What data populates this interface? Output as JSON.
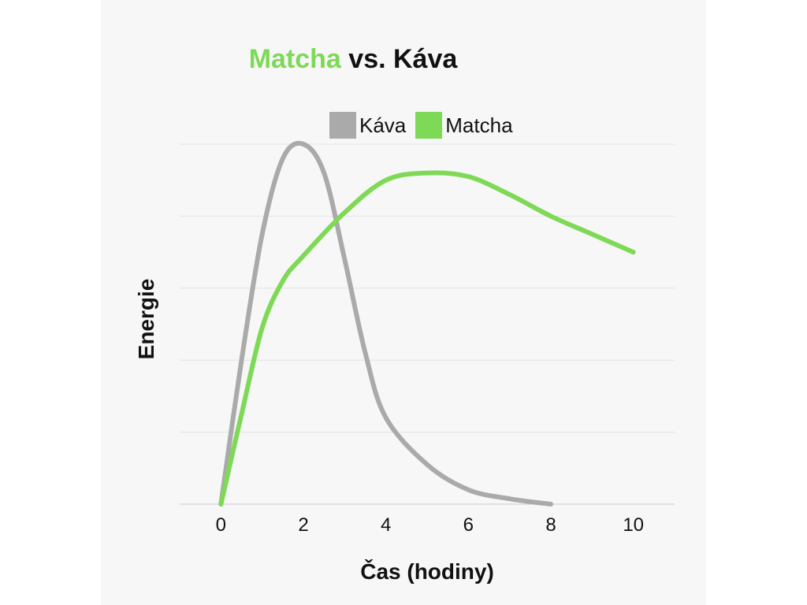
{
  "title": {
    "highlight": "Matcha",
    "rest": " vs. Káva"
  },
  "colors": {
    "kava": "#aaaaaa",
    "matcha": "#7ed957",
    "grid": "#e4e4e4",
    "axis": "#c8c8c8"
  },
  "chart_data": {
    "type": "line",
    "title": "Matcha vs. Káva",
    "xlabel": "Čas (hodiny)",
    "ylabel": "Energie",
    "xlim": [
      -1,
      11
    ],
    "ylim": [
      0,
      100
    ],
    "xticks": [
      0,
      2,
      4,
      6,
      8,
      10
    ],
    "grid": true,
    "legend_position": "top-center",
    "series": [
      {
        "name": "Káva",
        "x": [
          0,
          0.5,
          1,
          1.5,
          2,
          2.5,
          3,
          3.5,
          4,
          5,
          6,
          7,
          8
        ],
        "y": [
          0,
          40,
          75,
          96,
          100,
          92,
          68,
          42,
          24,
          11,
          4,
          1.5,
          0
        ]
      },
      {
        "name": "Matcha",
        "x": [
          0,
          0.5,
          1,
          1.5,
          2,
          3,
          4,
          5,
          6,
          7,
          8,
          9,
          10
        ],
        "y": [
          0,
          25,
          49,
          62,
          69,
          81,
          90,
          92,
          91,
          86,
          80,
          75,
          70
        ]
      }
    ]
  }
}
